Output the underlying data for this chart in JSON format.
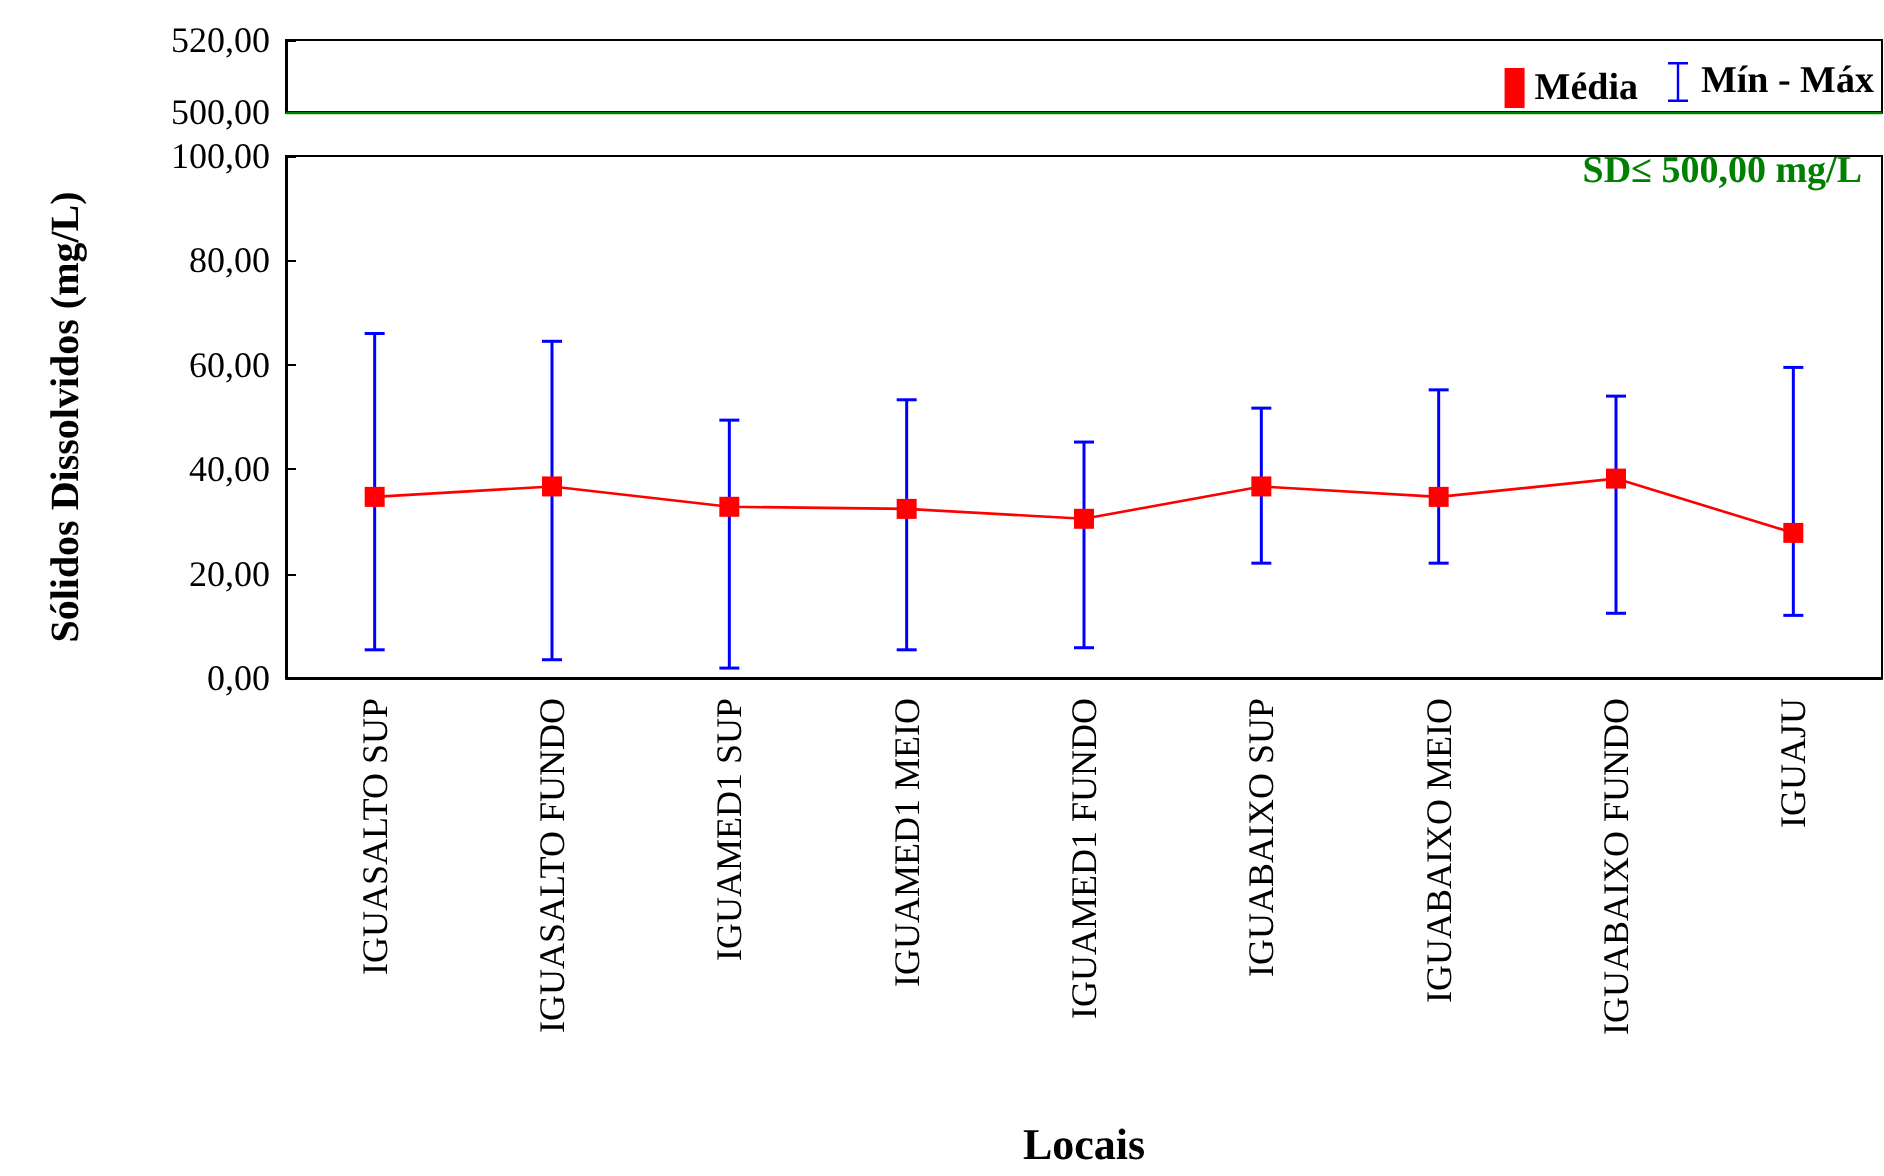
{
  "chart_data": [
    {
      "type": "line",
      "categories": [
        null,
        null,
        null,
        null,
        null,
        null,
        null,
        null,
        null
      ],
      "ylim": [
        500,
        520
      ],
      "yticks": [
        {
          "value": 500,
          "label": "500,00"
        },
        {
          "value": 520,
          "label": "520,00"
        }
      ],
      "ref_lines": [
        {
          "axis": "y",
          "value": 500,
          "label": "SD≤ 500,00 mg/L",
          "color": "#008000"
        }
      ],
      "tick_labels": "y"
    },
    {
      "type": "line",
      "xlabel": "Locais",
      "ylabel": "Sólidos Dissolvidos (mg/L)",
      "categories": [
        "IGUASALTO SUP",
        "IGUASALTO FUNDO",
        "IGUAMED1 SUP",
        "IGUAMED1 MEIO",
        "IGUAMED1 FUNDO",
        "IGUABAIXO SUP",
        "IGUABAIXO MEIO",
        "IGUABAIXO FUNDO",
        "IGUAJU"
      ],
      "series": [
        {
          "name": "Média",
          "color": "#ff0000",
          "values": [
            34.7,
            36.7,
            32.8,
            32.4,
            30.5,
            36.7,
            34.7,
            38.2,
            27.8
          ],
          "errors": [
            [
              5.4,
              66
            ],
            [
              3.5,
              64.5
            ],
            [
              1.9,
              49.4
            ],
            [
              5.4,
              53.3
            ],
            [
              5.8,
              45.2
            ],
            [
              22,
              51.7
            ],
            [
              22,
              55.2
            ],
            [
              12.4,
              54
            ],
            [
              12,
              59.5
            ]
          ]
        }
      ],
      "annotations": [
        "Mín - Máx"
      ],
      "ylim": [
        0,
        100
      ],
      "yticks": [
        {
          "value": 0,
          "label": "0,00"
        },
        {
          "value": 20,
          "label": "20,00"
        },
        {
          "value": 40,
          "label": "40,00"
        },
        {
          "value": 60,
          "label": "60,00"
        },
        {
          "value": 80,
          "label": "80,00"
        },
        {
          "value": 100,
          "label": "100,00"
        }
      ],
      "marker": "square",
      "line_style": "solid",
      "legend": "top right"
    }
  ]
}
